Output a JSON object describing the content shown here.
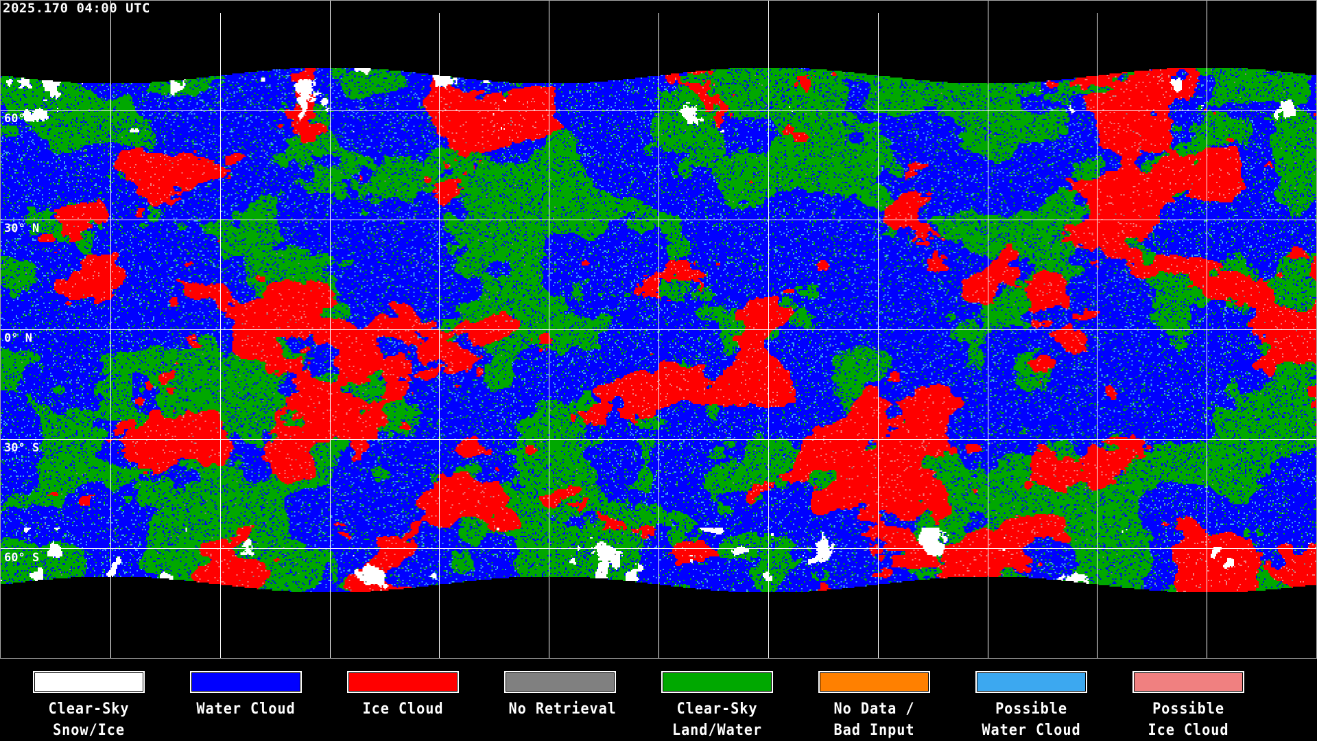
{
  "title": "2025.170 04:00 UTC",
  "latitude_labels": [
    "60° N",
    "30° N",
    "0° N",
    "30° S",
    "60° S"
  ],
  "grid": {
    "lon_spacing_deg": 30,
    "lat_spacing_deg": 30,
    "projection": "equirectangular",
    "color": "#ffffff"
  },
  "legend": [
    {
      "line1": "Clear-Sky",
      "line2": "Snow/Ice",
      "color": "#ffffff"
    },
    {
      "line1": "Water Cloud",
      "line2": "",
      "color": "#0000ff"
    },
    {
      "line1": "Ice Cloud",
      "line2": "",
      "color": "#ff0000"
    },
    {
      "line1": "No Retrieval",
      "line2": "",
      "color": "#808080"
    },
    {
      "line1": "Clear-Sky",
      "line2": "Land/Water",
      "color": "#00a800"
    },
    {
      "line1": "No Data /",
      "line2": "Bad Input",
      "color": "#ff8000"
    },
    {
      "line1": "Possible",
      "line2": "Water Cloud",
      "color": "#3ca8f0"
    },
    {
      "line1": "Possible",
      "line2": "Ice Cloud",
      "color": "#f08080"
    }
  ]
}
